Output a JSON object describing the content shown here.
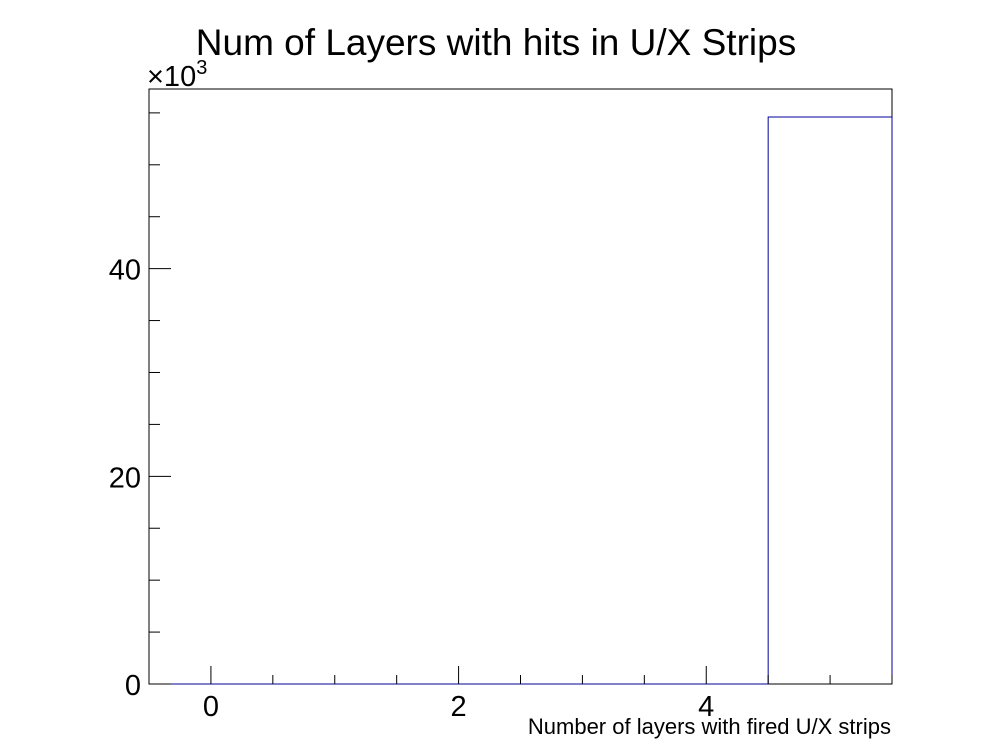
{
  "chart_data": {
    "type": "bar",
    "title": "Num of Layers with hits in U/X Strips",
    "xlabel": "Number of layers with fired U/X strips",
    "ylabel": "",
    "y_multiplier": {
      "base": "×10",
      "exponent": "3"
    },
    "bin_edges": [
      -0.5,
      0.5,
      1.5,
      2.5,
      3.5,
      4.5,
      5.5
    ],
    "values": [
      0,
      0,
      0,
      0,
      0,
      54.6
    ],
    "xlim": [
      -0.5,
      5.5
    ],
    "ylim": [
      0,
      57.3
    ],
    "x_ticks": [
      0,
      2,
      4
    ],
    "x_tick_labels": [
      "0",
      "2",
      "4"
    ],
    "y_ticks": [
      0,
      20,
      40
    ],
    "y_tick_labels": [
      "0",
      "20",
      "40"
    ],
    "grid": false,
    "line_color": "#000099",
    "axis_color": "#000000"
  }
}
